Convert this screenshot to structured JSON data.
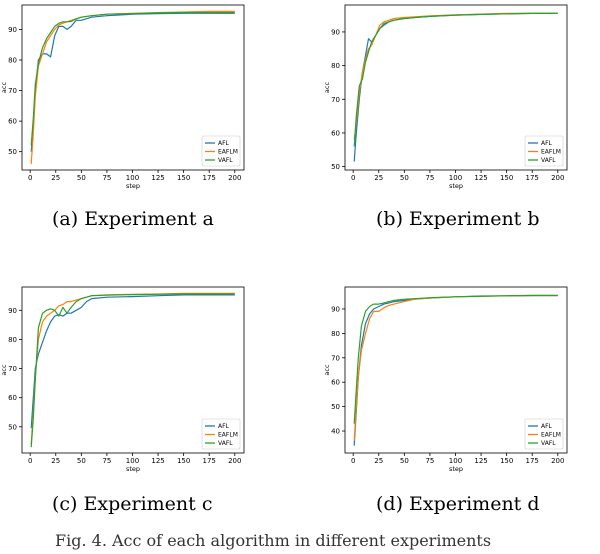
{
  "captions": [
    "(a)  Experiment  a",
    "(b)  Experiment  b",
    "(c)  Experiment  c",
    "(d)  Experiment  d"
  ],
  "figure_caption": "Fig. 4.   Acc of each algorithm in different experiments",
  "colors": {
    "AFL": "#1f77b4",
    "EAFLM": "#ff7f0e",
    "VAFL": "#2ca02c"
  },
  "chart_data": [
    {
      "type": "line",
      "xlabel": "step",
      "ylabel": "acc",
      "xlim": [
        -8,
        209
      ],
      "ylim": [
        44,
        98
      ],
      "xticks": [
        0,
        25,
        50,
        75,
        100,
        125,
        150,
        175,
        200
      ],
      "yticks": [
        50,
        60,
        70,
        80,
        90
      ],
      "legend": "lower-right",
      "series": [
        {
          "name": "AFL",
          "x": [
            1,
            3,
            5,
            8,
            12,
            16,
            20,
            24,
            28,
            32,
            36,
            40,
            45,
            50,
            60,
            75,
            100,
            125,
            150,
            175,
            200
          ],
          "y": [
            50,
            58,
            70,
            80,
            82,
            82,
            81,
            88,
            91,
            91,
            90,
            91,
            93,
            93,
            94,
            94.5,
            95,
            95.2,
            95.3,
            95.3,
            95.3
          ]
        },
        {
          "name": "EAFLM",
          "x": [
            1,
            3,
            5,
            8,
            12,
            16,
            20,
            24,
            28,
            32,
            36,
            40,
            45,
            50,
            60,
            75,
            100,
            125,
            150,
            175,
            200
          ],
          "y": [
            46,
            56,
            68,
            78,
            82,
            86,
            88,
            90,
            91.5,
            92,
            92.5,
            93,
            93.5,
            94,
            94.5,
            95,
            95.3,
            95.5,
            95.7,
            95.9,
            95.9
          ]
        },
        {
          "name": "VAFL",
          "x": [
            1,
            3,
            5,
            8,
            12,
            16,
            20,
            24,
            28,
            32,
            36,
            40,
            45,
            50,
            60,
            75,
            100,
            125,
            150,
            175,
            200
          ],
          "y": [
            52,
            61,
            72,
            79,
            84,
            87,
            89,
            91,
            92,
            92.5,
            92.5,
            92.6,
            93.5,
            94,
            94.5,
            95,
            95.2,
            95.4,
            95.5,
            95.5,
            95.5
          ]
        }
      ]
    },
    {
      "type": "line",
      "xlabel": "step",
      "ylabel": "acc",
      "xlim": [
        -8,
        209
      ],
      "ylim": [
        49,
        98
      ],
      "xticks": [
        0,
        25,
        50,
        75,
        100,
        125,
        150,
        175,
        200
      ],
      "yticks": [
        50,
        60,
        70,
        80,
        90
      ],
      "legend": "lower-right",
      "series": [
        {
          "name": "AFL",
          "x": [
            1,
            3,
            6,
            9,
            12,
            15,
            18,
            22,
            26,
            30,
            35,
            40,
            50,
            60,
            75,
            100,
            125,
            150,
            175,
            200
          ],
          "y": [
            51.5,
            60,
            70,
            78,
            83,
            88,
            87,
            89,
            91,
            92,
            93,
            93.5,
            94,
            94.3,
            94.6,
            95,
            95.2,
            95.4,
            95.5,
            95.5
          ]
        },
        {
          "name": "EAFLM",
          "x": [
            1,
            3,
            6,
            9,
            12,
            15,
            18,
            22,
            26,
            30,
            35,
            40,
            50,
            60,
            75,
            100,
            125,
            150,
            175,
            200
          ],
          "y": [
            58,
            63,
            72,
            78,
            82,
            85,
            86,
            89,
            92,
            93,
            93.5,
            94,
            94.3,
            94.5,
            94.8,
            95.1,
            95.3,
            95.5,
            95.5,
            95.5
          ]
        },
        {
          "name": "VAFL",
          "x": [
            1,
            3,
            6,
            9,
            12,
            15,
            18,
            22,
            26,
            30,
            35,
            40,
            50,
            60,
            75,
            100,
            125,
            150,
            175,
            200
          ],
          "y": [
            56,
            65,
            74,
            76,
            81,
            84,
            87,
            89,
            91,
            92.5,
            93,
            93.5,
            94,
            94.3,
            94.6,
            95,
            95.2,
            95.4,
            95.5,
            95.5
          ]
        }
      ]
    },
    {
      "type": "line",
      "xlabel": "step",
      "ylabel": "acc",
      "xlim": [
        -8,
        209
      ],
      "ylim": [
        41,
        98
      ],
      "xticks": [
        0,
        25,
        50,
        75,
        100,
        125,
        150,
        175,
        200
      ],
      "yticks": [
        50,
        60,
        70,
        80,
        90
      ],
      "legend": "lower-right",
      "series": [
        {
          "name": "AFL",
          "x": [
            1,
            3,
            5,
            8,
            12,
            16,
            20,
            24,
            28,
            32,
            36,
            40,
            45,
            50,
            55,
            60,
            75,
            100,
            125,
            150,
            175,
            200
          ],
          "y": [
            49.5,
            60,
            70,
            75,
            79,
            83,
            86,
            88,
            88.5,
            88,
            89,
            89,
            90,
            91,
            93,
            94,
            94.5,
            94.7,
            95,
            95.3,
            95.3,
            95.3
          ]
        },
        {
          "name": "EAFLM",
          "x": [
            1,
            3,
            5,
            8,
            12,
            16,
            20,
            24,
            28,
            32,
            36,
            40,
            45,
            50,
            55,
            60,
            75,
            100,
            125,
            150,
            175,
            200
          ],
          "y": [
            44,
            55,
            67,
            80,
            86,
            88,
            89,
            90,
            91.5,
            92,
            93,
            93,
            93.5,
            94,
            94.5,
            95,
            95.3,
            95.5,
            95.6,
            95.8,
            95.8,
            95.8
          ]
        },
        {
          "name": "VAFL",
          "x": [
            1,
            3,
            5,
            8,
            12,
            16,
            20,
            24,
            28,
            32,
            36,
            40,
            45,
            50,
            55,
            60,
            75,
            100,
            125,
            150,
            175,
            200
          ],
          "y": [
            43,
            53,
            66,
            84,
            89,
            90,
            90.5,
            90,
            88,
            91,
            89,
            91,
            93,
            94,
            94.5,
            95,
            95.2,
            95.4,
            95.5,
            95.6,
            95.6,
            95.6
          ]
        }
      ]
    },
    {
      "type": "line",
      "xlabel": "step",
      "ylabel": "acc",
      "xlim": [
        -8,
        209
      ],
      "ylim": [
        31,
        99
      ],
      "xticks": [
        0,
        25,
        50,
        75,
        100,
        125,
        150,
        175,
        200
      ],
      "yticks": [
        40,
        50,
        60,
        70,
        80,
        90
      ],
      "legend": "lower-right",
      "series": [
        {
          "name": "AFL",
          "x": [
            1,
            3,
            5,
            8,
            12,
            16,
            20,
            25,
            30,
            35,
            40,
            50,
            60,
            75,
            100,
            125,
            150,
            175,
            200
          ],
          "y": [
            34,
            48,
            62,
            75,
            84,
            88,
            90,
            91,
            92,
            92.5,
            93,
            93.5,
            94,
            94.5,
            95,
            95.3,
            95.4,
            95.5,
            95.5
          ]
        },
        {
          "name": "EAFLM",
          "x": [
            1,
            3,
            5,
            8,
            12,
            16,
            20,
            25,
            30,
            35,
            40,
            50,
            60,
            75,
            100,
            125,
            150,
            175,
            200
          ],
          "y": [
            36,
            50,
            62,
            73,
            80,
            86,
            89,
            89,
            90.5,
            91.5,
            92,
            93,
            94,
            94.5,
            95,
            95.2,
            95.4,
            95.5,
            95.5
          ]
        },
        {
          "name": "VAFL",
          "x": [
            1,
            3,
            5,
            8,
            12,
            16,
            20,
            25,
            30,
            35,
            40,
            50,
            60,
            75,
            100,
            125,
            150,
            175,
            200
          ],
          "y": [
            43,
            57,
            70,
            83,
            89,
            91,
            92,
            92,
            92.5,
            93,
            93.5,
            94,
            94.2,
            94.6,
            95,
            95.2,
            95.4,
            95.5,
            95.5
          ]
        }
      ]
    }
  ]
}
